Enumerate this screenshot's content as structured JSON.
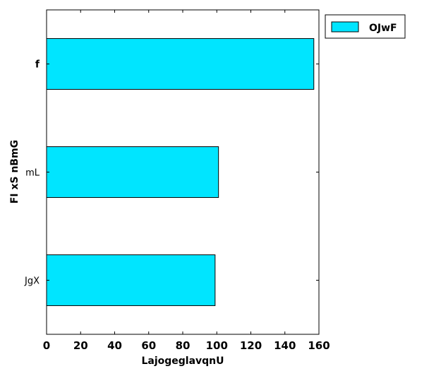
{
  "chart_data": {
    "type": "bar",
    "orientation": "horizontal",
    "categories": [
      "f",
      "mL",
      "JgX"
    ],
    "series": [
      {
        "name": "OJwF",
        "values": [
          157,
          101,
          99
        ],
        "color": "#00e5ff"
      }
    ],
    "xlabel": "LajogeglavqnU",
    "ylabel": "FI xS  nBmG",
    "xlim": [
      0,
      160
    ],
    "xticks": [
      0,
      20,
      40,
      60,
      80,
      100,
      120,
      140,
      160
    ],
    "grid": false,
    "legend_position": "top-right-outside"
  }
}
